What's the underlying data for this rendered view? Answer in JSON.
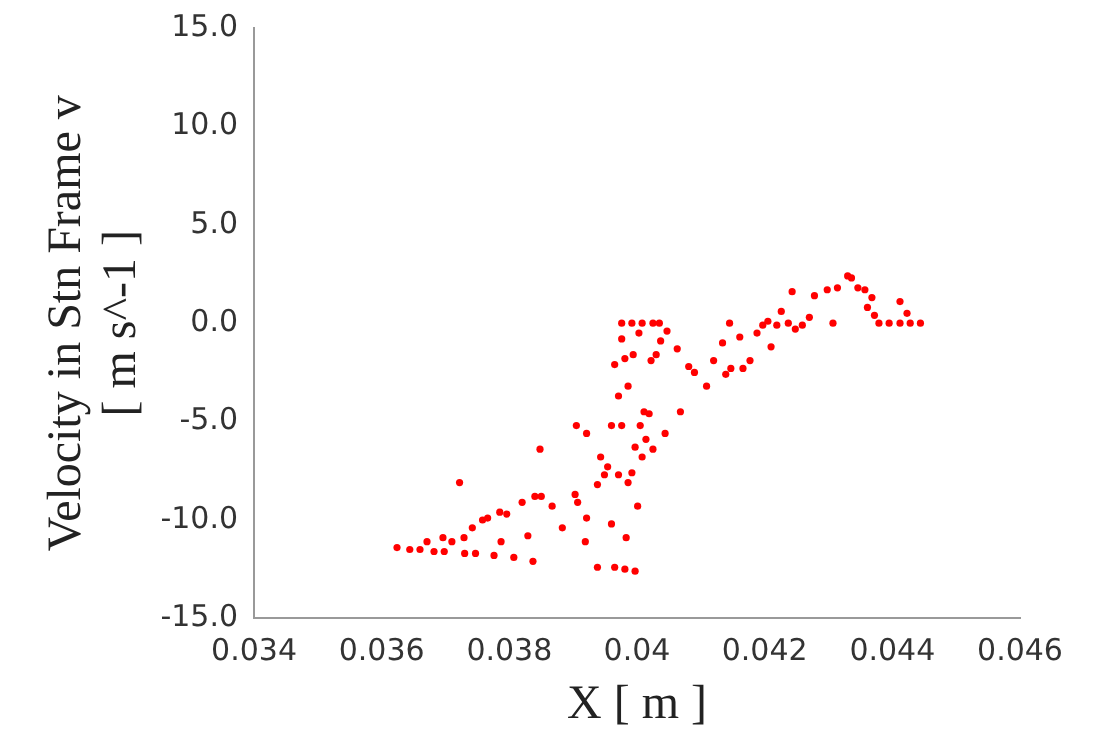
{
  "chart_data": {
    "type": "scatter",
    "xlabel": "X [ m ]",
    "ylabel": "Velocity in Stn Frame v\n[ m s^-1 ]",
    "xlim": [
      0.034,
      0.046
    ],
    "xticks": [
      0.034,
      0.036,
      0.038,
      0.04,
      0.042,
      0.044,
      0.046
    ],
    "ylim": [
      -15,
      15
    ],
    "yticks": [
      {
        "value": -15,
        "label": "-15.0"
      },
      {
        "value": -10,
        "label": "-10.0"
      },
      {
        "value": -5,
        "label": "-5.0"
      },
      {
        "value": 0,
        "label": "0.0"
      },
      {
        "value": 5,
        "label": "5.0"
      },
      {
        "value": 10,
        "label": "10.0"
      },
      {
        "value": 15,
        "label": "15.0"
      }
    ],
    "grid": false,
    "legend": false,
    "marker": "circle",
    "series": [
      {
        "color": "#ff0000",
        "x": [
          0.03624,
          0.03644,
          0.0366,
          0.03671,
          0.03682,
          0.03696,
          0.03698,
          0.0371,
          0.03722,
          0.03729,
          0.0373,
          0.03742,
          0.03747,
          0.03758,
          0.03766,
          0.03776,
          0.03785,
          0.03787,
          0.03796,
          0.03807,
          0.0382,
          0.03829,
          0.03837,
          0.0384,
          0.0385,
          0.03848,
          0.03867,
          0.03883,
          0.03903,
          0.03905,
          0.03907,
          0.03921,
          0.03921,
          0.03919,
          0.03938,
          0.03938,
          0.03943,
          0.03949,
          0.03954,
          0.0396,
          0.0396,
          0.03965,
          0.03965,
          0.03971,
          0.03971,
          0.03976,
          0.03976,
          0.03976,
          0.03981,
          0.03981,
          0.03983,
          0.03986,
          0.03986,
          0.03992,
          0.03992,
          0.03994,
          0.03997,
          0.03997,
          0.04001,
          0.04003,
          0.04005,
          0.04008,
          0.04008,
          0.04011,
          0.04014,
          0.04019,
          0.04022,
          0.04025,
          0.04025,
          0.0403,
          0.04035,
          0.04037,
          0.04044,
          0.04047,
          0.04063,
          0.04068,
          0.04081,
          0.0409,
          0.04109,
          0.0412,
          0.04134,
          0.04139,
          0.04145,
          0.04147,
          0.04161,
          0.04166,
          0.04177,
          0.04188,
          0.04197,
          0.04205,
          0.0421,
          0.04219,
          0.04226,
          0.04237,
          0.04243,
          0.04248,
          0.04259,
          0.0427,
          0.04278,
          0.04298,
          0.04307,
          0.04314,
          0.0433,
          0.04336,
          0.04346,
          0.04357,
          0.04361,
          0.04368,
          0.04372,
          0.04379,
          0.04395,
          0.04412,
          0.04412,
          0.04423,
          0.04428,
          0.04444
        ],
        "values": [
          -11.4,
          -11.5,
          -11.5,
          -11.1,
          -11.6,
          -10.9,
          -11.6,
          -11.1,
          -8.1,
          -10.9,
          -11.7,
          -10.4,
          -11.7,
          -10.0,
          -9.9,
          -11.8,
          -9.6,
          -11.1,
          -9.7,
          -11.9,
          -9.1,
          -10.8,
          -12.1,
          -8.8,
          -8.8,
          -6.4,
          -9.3,
          -10.4,
          -8.7,
          -5.2,
          -9.1,
          -5.6,
          -9.9,
          -11.1,
          -12.4,
          -8.2,
          -6.8,
          -7.7,
          -7.3,
          -5.2,
          -10.2,
          -2.1,
          -12.4,
          -7.7,
          -3.7,
          0,
          -0.8,
          -5.2,
          -12.5,
          -1.8,
          -10.9,
          -3.2,
          -8.1,
          0,
          -7.6,
          -1.6,
          -6.3,
          -12.6,
          -9.3,
          -0.5,
          -5.2,
          0,
          -6.8,
          -4.5,
          -5.9,
          -4.6,
          -1.9,
          0,
          -6.4,
          -1.6,
          0,
          -0.9,
          -5.6,
          -0.4,
          -1.3,
          -4.5,
          -2.2,
          -2.5,
          -3.2,
          -1.9,
          -1.0,
          -2.6,
          0,
          -2.3,
          -0.7,
          -2.3,
          -1.9,
          -0.5,
          -0.1,
          0.1,
          -1.2,
          -0.1,
          0.6,
          0,
          1.6,
          -0.3,
          -0.1,
          0.3,
          1.4,
          1.7,
          0,
          1.8,
          2.4,
          2.3,
          1.8,
          1.7,
          0.8,
          1.3,
          0.4,
          0,
          0,
          1.1,
          0,
          0.5,
          0,
          0
        ]
      }
    ]
  }
}
